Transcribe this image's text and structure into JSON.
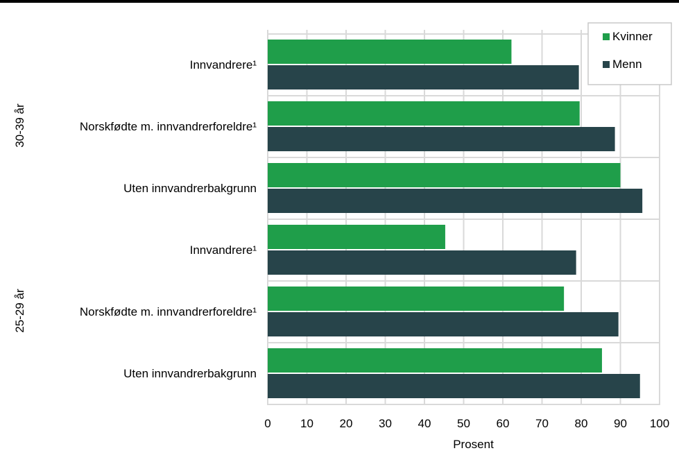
{
  "chart_data": {
    "type": "bar",
    "orientation": "horizontal",
    "xlabel": "Prosent",
    "xlim": [
      0,
      100
    ],
    "xticks": [
      "0",
      "10",
      "20",
      "30",
      "40",
      "50",
      "60",
      "70",
      "80",
      "90",
      "100"
    ],
    "grid": true,
    "legend_position": "top-right",
    "groups": [
      {
        "label": "30-39 år",
        "categories": [
          "Innvandrere¹",
          "Norskfødte m. innvandrerforeldre¹",
          "Uten innvandrerbakgrunn"
        ]
      },
      {
        "label": "25-29 år",
        "categories": [
          "Innvandrere¹",
          "Norskfødte m. innvandrerforeldre¹",
          "Uten innvandrerbakgrunn"
        ]
      }
    ],
    "series": [
      {
        "name": "Kvinner",
        "color": "#1f9e4a",
        "values": [
          62.2,
          79.6,
          90.0,
          45.3,
          75.6,
          85.3
        ]
      },
      {
        "name": "Menn",
        "color": "#27444a",
        "values": [
          79.4,
          88.6,
          95.6,
          78.7,
          89.5,
          95.0
        ]
      }
    ]
  },
  "colors": {
    "grid": "#d9d9d9",
    "topline": "#000000"
  }
}
